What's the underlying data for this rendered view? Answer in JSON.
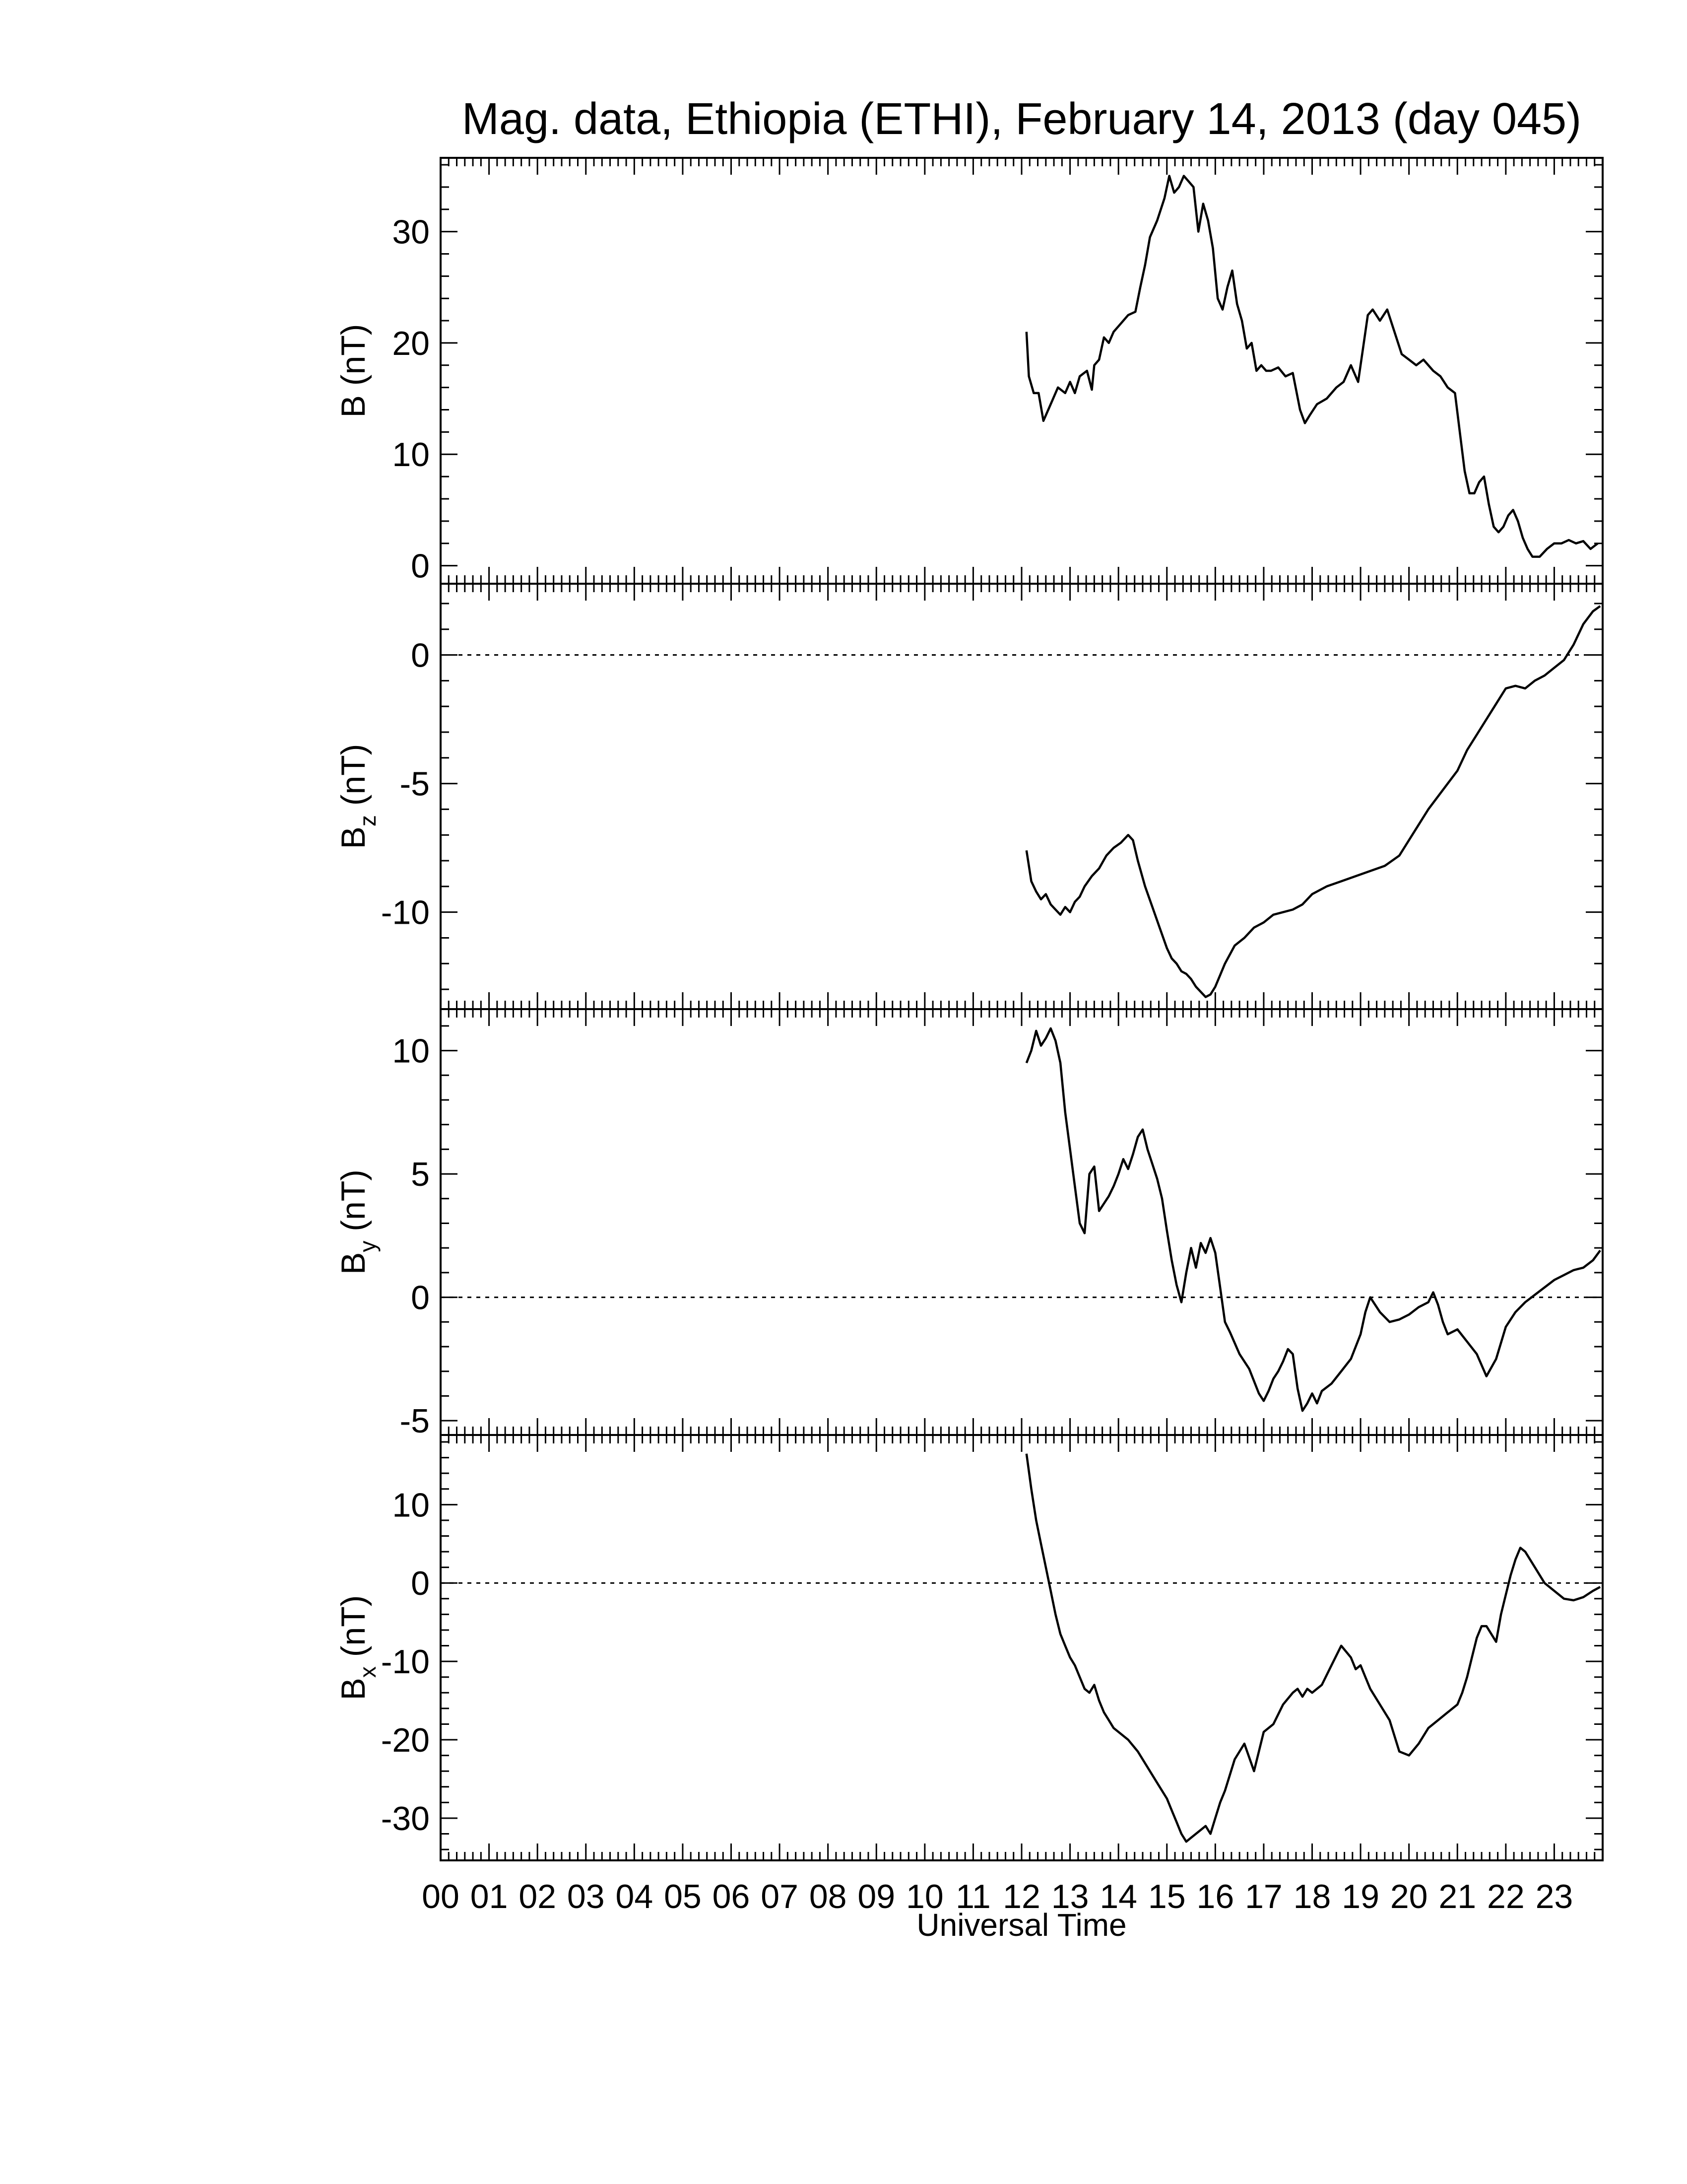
{
  "chart_data": [
    {
      "type": "line",
      "title": "Mag. data, Ethiopia (ETHI), February 14, 2013 (day 045)",
      "ylabel": "B (nT)",
      "ylabel_sub": "",
      "ylim": [
        -1,
        36
      ],
      "yticks": [
        0,
        10,
        20,
        30
      ],
      "zero_line": false,
      "xlim": [
        0,
        24
      ],
      "series": [
        {
          "x": [
            12.1,
            12.15,
            12.25,
            12.35,
            12.45,
            12.5,
            12.6,
            12.75,
            12.9,
            13.0,
            13.1,
            13.2,
            13.35,
            13.45,
            13.5,
            13.6,
            13.7,
            13.8,
            13.9,
            14.0,
            14.2,
            14.35,
            14.45,
            14.55,
            14.65,
            14.8,
            14.95,
            15.05,
            15.15,
            15.25,
            15.35,
            15.45,
            15.55,
            15.65,
            15.75,
            15.85,
            15.95,
            16.05,
            16.15,
            16.25,
            16.35,
            16.45,
            16.55,
            16.65,
            16.75,
            16.85,
            16.95,
            17.05,
            17.15,
            17.3,
            17.45,
            17.6,
            17.75,
            17.85,
            17.95,
            18.1,
            18.3,
            18.5,
            18.65,
            18.8,
            18.95,
            19.05,
            19.15,
            19.25,
            19.4,
            19.55,
            19.7,
            19.85,
            20.0,
            20.15,
            20.3,
            20.5,
            20.65,
            20.8,
            20.95,
            21.05,
            21.15,
            21.25,
            21.35,
            21.45,
            21.55,
            21.65,
            21.75,
            21.85,
            21.95,
            22.05,
            22.15,
            22.25,
            22.35,
            22.45,
            22.55,
            22.7,
            22.85,
            23.0,
            23.15,
            23.3,
            23.45,
            23.6,
            23.75,
            23.9
          ],
          "y": [
            21,
            17,
            15.5,
            15.5,
            13,
            13.5,
            14.5,
            16,
            15.5,
            16.5,
            15.5,
            17,
            17.5,
            15.8,
            18,
            18.5,
            20.5,
            20,
            21,
            21.5,
            22.5,
            22.8,
            25,
            27,
            29.5,
            31,
            33,
            35,
            33.5,
            34,
            35,
            34.5,
            34,
            30,
            32.5,
            31,
            28.5,
            24,
            23,
            25,
            26.5,
            23.5,
            22,
            19.5,
            20,
            17.5,
            18,
            17.5,
            17.5,
            17.8,
            17,
            17.3,
            14,
            12.8,
            13.5,
            14.5,
            15,
            16,
            16.5,
            18,
            16.5,
            19.5,
            22.5,
            23,
            22,
            23,
            21,
            19,
            18.5,
            18,
            18.5,
            17.5,
            17,
            16,
            15.5,
            12,
            8.5,
            6.5,
            6.5,
            7.5,
            8,
            5.5,
            3.5,
            3,
            3.5,
            4.5,
            5,
            4,
            2.5,
            1.5,
            0.8,
            0.8,
            1.5,
            2,
            2,
            2.3,
            2,
            2.2,
            1.5,
            2
          ]
        }
      ]
    },
    {
      "type": "line",
      "title": "",
      "ylabel": "B",
      "ylabel_sub": "z",
      "ylabel_unit": "(nT)",
      "ylim": [
        -13.5,
        2.5
      ],
      "yticks": [
        0,
        -5,
        -10
      ],
      "zero_line": true,
      "xlim": [
        0,
        24
      ],
      "series": [
        {
          "x": [
            12.1,
            12.2,
            12.3,
            12.4,
            12.5,
            12.6,
            12.7,
            12.8,
            12.9,
            13.0,
            13.1,
            13.2,
            13.3,
            13.45,
            13.6,
            13.75,
            13.9,
            14.05,
            14.2,
            14.3,
            14.4,
            14.55,
            14.7,
            14.85,
            15.0,
            15.1,
            15.2,
            15.3,
            15.4,
            15.5,
            15.6,
            15.7,
            15.8,
            15.9,
            16.0,
            16.2,
            16.4,
            16.6,
            16.8,
            17.0,
            17.2,
            17.4,
            17.6,
            17.8,
            18.0,
            18.3,
            18.6,
            18.9,
            19.2,
            19.5,
            19.8,
            20.0,
            20.2,
            20.4,
            20.6,
            20.8,
            21.0,
            21.2,
            21.4,
            21.6,
            21.8,
            22.0,
            22.2,
            22.4,
            22.6,
            22.8,
            23.0,
            23.2,
            23.4,
            23.6,
            23.8,
            23.95
          ],
          "y": [
            -7.6,
            -8.8,
            -9.2,
            -9.5,
            -9.3,
            -9.7,
            -9.9,
            -10.1,
            -9.8,
            -10.0,
            -9.6,
            -9.4,
            -9.0,
            -8.6,
            -8.3,
            -7.8,
            -7.5,
            -7.3,
            -7.0,
            -7.2,
            -8.0,
            -9.0,
            -9.8,
            -10.6,
            -11.4,
            -11.8,
            -12.0,
            -12.3,
            -12.4,
            -12.6,
            -12.9,
            -13.1,
            -13.3,
            -13.2,
            -12.9,
            -12.0,
            -11.3,
            -11.0,
            -10.6,
            -10.4,
            -10.1,
            -10.0,
            -9.9,
            -9.7,
            -9.3,
            -9.0,
            -8.8,
            -8.6,
            -8.4,
            -8.2,
            -7.8,
            -7.2,
            -6.6,
            -6.0,
            -5.5,
            -5.0,
            -4.5,
            -3.7,
            -3.1,
            -2.5,
            -1.9,
            -1.3,
            -1.2,
            -1.3,
            -1.0,
            -0.8,
            -0.5,
            -0.2,
            0.4,
            1.2,
            1.7,
            1.9
          ]
        }
      ]
    },
    {
      "type": "line",
      "title": "",
      "ylabel": "B",
      "ylabel_sub": "y",
      "ylabel_unit": "(nT)",
      "ylim": [
        -5.3,
        11.4
      ],
      "yticks": [
        10,
        5,
        0,
        -5
      ],
      "zero_line": true,
      "xlim": [
        0,
        24
      ],
      "series": [
        {
          "x": [
            12.1,
            12.2,
            12.3,
            12.4,
            12.5,
            12.6,
            12.7,
            12.8,
            12.9,
            13.0,
            13.1,
            13.2,
            13.3,
            13.35,
            13.4,
            13.5,
            13.6,
            13.7,
            13.8,
            13.9,
            14.0,
            14.1,
            14.2,
            14.3,
            14.4,
            14.5,
            14.6,
            14.7,
            14.8,
            14.9,
            15.0,
            15.1,
            15.2,
            15.3,
            15.4,
            15.5,
            15.6,
            15.7,
            15.8,
            15.9,
            16.0,
            16.1,
            16.2,
            16.3,
            16.5,
            16.7,
            16.9,
            17.0,
            17.1,
            17.2,
            17.3,
            17.4,
            17.5,
            17.6,
            17.7,
            17.8,
            17.9,
            18.0,
            18.1,
            18.2,
            18.4,
            18.6,
            18.8,
            19.0,
            19.1,
            19.2,
            19.4,
            19.6,
            19.8,
            20.0,
            20.2,
            20.4,
            20.5,
            20.6,
            20.7,
            20.8,
            21.0,
            21.2,
            21.4,
            21.6,
            21.8,
            22.0,
            22.2,
            22.4,
            22.6,
            22.8,
            23.0,
            23.2,
            23.4,
            23.6,
            23.8,
            23.95
          ],
          "y": [
            9.5,
            10.0,
            10.8,
            10.2,
            10.5,
            10.9,
            10.4,
            9.5,
            7.5,
            6.0,
            4.5,
            3.0,
            2.6,
            3.8,
            5.0,
            5.3,
            3.5,
            3.8,
            4.1,
            4.5,
            5.0,
            5.6,
            5.2,
            5.8,
            6.5,
            6.8,
            6.0,
            5.4,
            4.8,
            4.0,
            2.7,
            1.5,
            0.5,
            -0.2,
            1.0,
            2.0,
            1.2,
            2.2,
            1.8,
            2.4,
            1.8,
            0.4,
            -1.0,
            -1.4,
            -2.3,
            -2.9,
            -3.9,
            -4.2,
            -3.8,
            -3.3,
            -3.0,
            -2.6,
            -2.1,
            -2.3,
            -3.7,
            -4.6,
            -4.3,
            -3.9,
            -4.3,
            -3.8,
            -3.5,
            -3.0,
            -2.5,
            -1.5,
            -0.6,
            0.0,
            -0.6,
            -1.0,
            -0.9,
            -0.7,
            -0.4,
            -0.2,
            0.2,
            -0.3,
            -1.0,
            -1.5,
            -1.3,
            -1.8,
            -2.3,
            -3.2,
            -2.5,
            -1.2,
            -0.6,
            -0.2,
            0.1,
            0.4,
            0.7,
            0.9,
            1.1,
            1.2,
            1.5,
            1.9
          ]
        }
      ]
    },
    {
      "type": "line",
      "title": "",
      "ylabel": "B",
      "ylabel_sub": "x",
      "ylabel_unit": "(nT)",
      "xlabel": "Universal Time",
      "ylim": [
        -34.5,
        18
      ],
      "yticks": [
        10,
        0,
        -10,
        -20,
        -30
      ],
      "zero_line": true,
      "xlim": [
        0,
        24
      ],
      "xticks": [
        "00",
        "01",
        "02",
        "03",
        "04",
        "05",
        "06",
        "07",
        "08",
        "09",
        "10",
        "11",
        "12",
        "13",
        "14",
        "15",
        "16",
        "17",
        "18",
        "19",
        "20",
        "21",
        "22",
        "23"
      ],
      "series": [
        {
          "x": [
            12.1,
            12.2,
            12.3,
            12.4,
            12.5,
            12.6,
            12.7,
            12.8,
            12.9,
            13.0,
            13.1,
            13.2,
            13.3,
            13.4,
            13.5,
            13.6,
            13.7,
            13.8,
            13.9,
            14.0,
            14.2,
            14.4,
            14.6,
            14.8,
            15.0,
            15.1,
            15.2,
            15.3,
            15.4,
            15.5,
            15.6,
            15.7,
            15.8,
            15.9,
            16.0,
            16.1,
            16.2,
            16.3,
            16.4,
            16.6,
            16.8,
            17.0,
            17.2,
            17.4,
            17.6,
            17.7,
            17.8,
            17.9,
            18.0,
            18.2,
            18.4,
            18.6,
            18.8,
            18.9,
            19.0,
            19.1,
            19.2,
            19.4,
            19.6,
            19.8,
            20.0,
            20.2,
            20.4,
            20.6,
            20.8,
            20.9,
            21.0,
            21.1,
            21.2,
            21.3,
            21.4,
            21.5,
            21.6,
            21.7,
            21.8,
            21.9,
            22.0,
            22.1,
            22.2,
            22.3,
            22.4,
            22.6,
            22.8,
            23.0,
            23.2,
            23.4,
            23.6,
            23.8,
            23.95
          ],
          "y": [
            16.5,
            12.0,
            8.0,
            5.0,
            2.0,
            -1.0,
            -4.0,
            -6.5,
            -8.0,
            -9.5,
            -10.5,
            -12.0,
            -13.5,
            -14.0,
            -13.0,
            -15.0,
            -16.5,
            -17.5,
            -18.5,
            -19.0,
            -20.0,
            -21.5,
            -23.5,
            -25.5,
            -27.5,
            -29.0,
            -30.5,
            -32.0,
            -33.0,
            -32.5,
            -32.0,
            -31.5,
            -31.0,
            -32.0,
            -30.0,
            -28.0,
            -26.5,
            -24.5,
            -22.5,
            -20.5,
            -24.0,
            -19.0,
            -18.0,
            -15.5,
            -14.0,
            -13.5,
            -14.5,
            -13.5,
            -14.0,
            -13.0,
            -10.5,
            -8.0,
            -9.5,
            -11.0,
            -10.5,
            -12.0,
            -13.5,
            -15.5,
            -17.5,
            -21.5,
            -22.0,
            -20.5,
            -18.5,
            -17.5,
            -16.5,
            -16.0,
            -15.5,
            -14.0,
            -12.0,
            -9.5,
            -7.0,
            -5.5,
            -5.5,
            -6.5,
            -7.5,
            -4.0,
            -1.5,
            1.0,
            3.0,
            4.5,
            4.0,
            2.0,
            0.0,
            -1.0,
            -2.0,
            -2.2,
            -1.8,
            -1.0,
            -0.5
          ]
        }
      ]
    }
  ]
}
